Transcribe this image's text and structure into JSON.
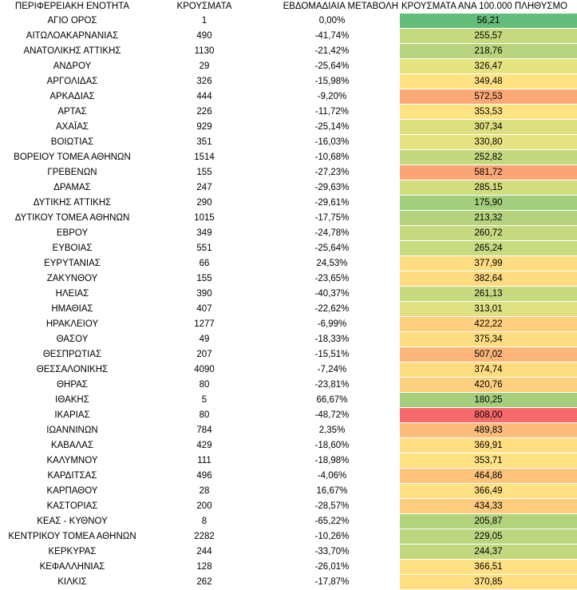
{
  "columns": [
    "ΠΕΡΙΦΕΡΕΙΑΚΗ ΕΝΟΤΗΤΑ",
    "ΚΡΟΥΣΜΑΤΑ",
    "ΕΒΔΟΜΑΔΙΑΙΑ ΜΕΤΑΒΟΛΗ",
    "ΚΡΟΥΣΜΑΤΑ ΑΝΑ 100.000 ΠΛΗΘΥΣΜΟ"
  ],
  "rows": [
    {
      "region": "ΑΓΙΟ ΟΡΟΣ",
      "cases": "1",
      "weekly_change": "0,00%",
      "per_100k": "56,21",
      "color": "#63be7b"
    },
    {
      "region": "ΑΙΤΩΛΟΑΚΑΡΝΑΝΙΑΣ",
      "cases": "490",
      "weekly_change": "-41,74%",
      "per_100k": "255,57",
      "color": "#c5d97f"
    },
    {
      "region": "ΑΝΑΤΟΛΙΚΗΣ ΑΤΤΙΚΗΣ",
      "cases": "1130",
      "weekly_change": "-21,42%",
      "per_100k": "218,76",
      "color": "#b8d47e"
    },
    {
      "region": "ΑΝΔΡΟΥ",
      "cases": "29",
      "weekly_change": "-25,64%",
      "per_100k": "326,47",
      "color": "#e6e381"
    },
    {
      "region": "ΑΡΓΟΛΙΔΑΣ",
      "cases": "326",
      "weekly_change": "-15,98%",
      "per_100k": "349,48",
      "color": "#ffe383"
    },
    {
      "region": "ΑΡΚΑΔΙΑΣ",
      "cases": "444",
      "weekly_change": "-9,20%",
      "per_100k": "572,53",
      "color": "#fba877"
    },
    {
      "region": "ΑΡΤΑΣ",
      "cases": "226",
      "weekly_change": "-11,72%",
      "per_100k": "353,53",
      "color": "#ffe383"
    },
    {
      "region": "ΑΧΑΪΑΣ",
      "cases": "929",
      "weekly_change": "-25,14%",
      "per_100k": "307,34",
      "color": "#dde081"
    },
    {
      "region": "ΒΟΙΩΤΙΑΣ",
      "cases": "351",
      "weekly_change": "-16,03%",
      "per_100k": "330,80",
      "color": "#e8e382"
    },
    {
      "region": "ΒΟΡΕΙΟΥ ΤΟΜΕΑ ΑΘΗΝΩΝ",
      "cases": "1514",
      "weekly_change": "-10,68%",
      "per_100k": "252,82",
      "color": "#c3d97f"
    },
    {
      "region": "ΓΡΕΒΕΝΩΝ",
      "cases": "155",
      "weekly_change": "-27,23%",
      "per_100k": "581,72",
      "color": "#fba576"
    },
    {
      "region": "ΔΡΑΜΑΣ",
      "cases": "247",
      "weekly_change": "-29,63%",
      "per_100k": "285,15",
      "color": "#d2dd80"
    },
    {
      "region": "ΔΥΤΙΚΗΣ ΑΤΤΙΚΗΣ",
      "cases": "290",
      "weekly_change": "-29,61%",
      "per_100k": "175,90",
      "color": "#a3ce7d"
    },
    {
      "region": "ΔΥΤΙΚΟΥ ΤΟΜΕΑ ΑΘΗΝΩΝ",
      "cases": "1015",
      "weekly_change": "-17,75%",
      "per_100k": "213,32",
      "color": "#b5d37e"
    },
    {
      "region": "ΕΒΡΟΥ",
      "cases": "349",
      "weekly_change": "-24,78%",
      "per_100k": "260,72",
      "color": "#c7da80"
    },
    {
      "region": "ΕΥΒΟΙΑΣ",
      "cases": "551",
      "weekly_change": "-25,64%",
      "per_100k": "265,24",
      "color": "#c9db80"
    },
    {
      "region": "ΕΥΡΥΤΑΝΙΑΣ",
      "cases": "66",
      "weekly_change": "24,53%",
      "per_100k": "377,99",
      "color": "#fedc81"
    },
    {
      "region": "ΖΑΚΥΝΘΟΥ",
      "cases": "155",
      "weekly_change": "-23,65%",
      "per_100k": "382,64",
      "color": "#fedb81"
    },
    {
      "region": "ΗΛΕΙΑΣ",
      "cases": "390",
      "weekly_change": "-40,37%",
      "per_100k": "261,13",
      "color": "#c7da80"
    },
    {
      "region": "ΗΜΑΘΙΑΣ",
      "cases": "407",
      "weekly_change": "-22,62%",
      "per_100k": "313,01",
      "color": "#e0e182"
    },
    {
      "region": "ΗΡΑΚΛΕΙΟΥ",
      "cases": "1277",
      "weekly_change": "-6,99%",
      "per_100k": "422,22",
      "color": "#fdcf7e"
    },
    {
      "region": "ΘΑΣΟΥ",
      "cases": "49",
      "weekly_change": "-18,33%",
      "per_100k": "375,34",
      "color": "#fedd81"
    },
    {
      "region": "ΘΕΣΠΡΩΤΙΑΣ",
      "cases": "207",
      "weekly_change": "-15,51%",
      "per_100k": "507,02",
      "color": "#fcb67a"
    },
    {
      "region": "ΘΕΣΣΑΛΟΝΙΚΗΣ",
      "cases": "4090",
      "weekly_change": "-7,24%",
      "per_100k": "374,74",
      "color": "#fedd81"
    },
    {
      "region": "ΘΗΡΑΣ",
      "cases": "80",
      "weekly_change": "-23,81%",
      "per_100k": "420,76",
      "color": "#fdd07e"
    },
    {
      "region": "ΙΘΑΚΗΣ",
      "cases": "5",
      "weekly_change": "66,67%",
      "per_100k": "180,25",
      "color": "#a5cf7d"
    },
    {
      "region": "ΙΚΑΡΙΑΣ",
      "cases": "80",
      "weekly_change": "-48,72%",
      "per_100k": "808,00",
      "color": "#f8696b"
    },
    {
      "region": "ΙΩΑΝΝΙΝΩΝ",
      "cases": "784",
      "weekly_change": "2,35%",
      "per_100k": "489,83",
      "color": "#fcbc7b"
    },
    {
      "region": "ΚΑΒΑΛΑΣ",
      "cases": "429",
      "weekly_change": "-18,60%",
      "per_100k": "369,91",
      "color": "#ffdf82"
    },
    {
      "region": "ΚΑΛΥΜΝΟΥ",
      "cases": "111",
      "weekly_change": "-18,98%",
      "per_100k": "353,71",
      "color": "#ffe383"
    },
    {
      "region": "ΚΑΡΔΙΤΣΑΣ",
      "cases": "496",
      "weekly_change": "-4,06%",
      "per_100k": "464,86",
      "color": "#fdc37c"
    },
    {
      "region": "ΚΑΡΠΑΘΟΥ",
      "cases": "28",
      "weekly_change": "16,67%",
      "per_100k": "366,49",
      "color": "#ffe082"
    },
    {
      "region": "ΚΑΣΤΟΡΙΑΣ",
      "cases": "200",
      "weekly_change": "-28,57%",
      "per_100k": "434,33",
      "color": "#fdcc7e"
    },
    {
      "region": "ΚΕΑΣ - ΚΥΘΝΟΥ",
      "cases": "8",
      "weekly_change": "-65,22%",
      "per_100k": "205,87",
      "color": "#b2d27e"
    },
    {
      "region": "ΚΕΝΤΡΙΚΟΥ ΤΟΜΕΑ ΑΘΗΝΩΝ",
      "cases": "2282",
      "weekly_change": "-10,26%",
      "per_100k": "229,05",
      "color": "#bbd67f"
    },
    {
      "region": "ΚΕΡΚΥΡΑΣ",
      "cases": "244",
      "weekly_change": "-33,70%",
      "per_100k": "244,37",
      "color": "#c1d87f"
    },
    {
      "region": "ΚΕΦΑΛΛΗΝΙΑΣ",
      "cases": "128",
      "weekly_change": "-26,01%",
      "per_100k": "366,51",
      "color": "#ffe082"
    },
    {
      "region": "ΚΙΛΚΙΣ",
      "cases": "262",
      "weekly_change": "-17,87%",
      "per_100k": "370,85",
      "color": "#ffde82"
    }
  ]
}
